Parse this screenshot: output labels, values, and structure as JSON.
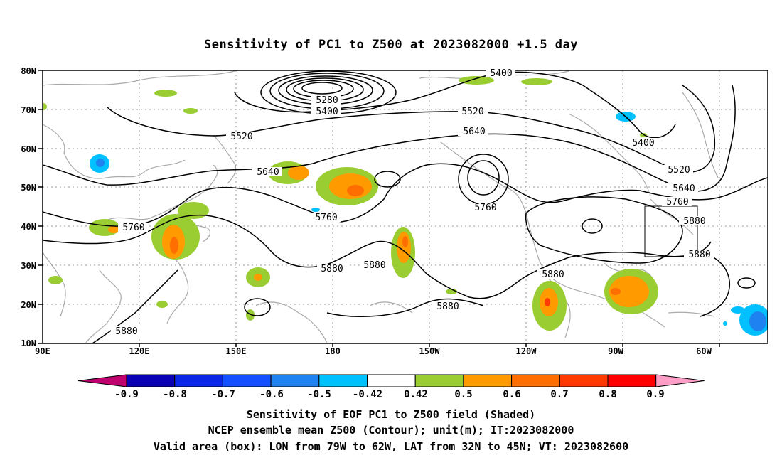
{
  "title": "Sensitivity of PC1 to Z500 at 2023082000 +1.5 day",
  "map": {
    "lat_labels": [
      "80N",
      "70N",
      "60N",
      "50N",
      "40N",
      "30N",
      "20N",
      "10N"
    ],
    "lon_labels": [
      "90E",
      "120E",
      "150E",
      "180",
      "150W",
      "120W",
      "90W",
      "60W"
    ],
    "contour_labels": {
      "c5400a": "5400",
      "c5280": "5280",
      "c5400b": "5400",
      "c5520a": "5520",
      "c5520b": "5520",
      "c5640a": "5640",
      "c5640b": "5640",
      "c5400c": "5400",
      "c5520c": "5520",
      "c5640c": "5640",
      "c5760a": "5760",
      "c5760b": "5760",
      "c5760c": "5760",
      "c5760d": "5760",
      "c5880a": "5880",
      "c5880b": "5880",
      "c5880c": "5880",
      "c5880d": "5880",
      "c5880e": "5880",
      "c5880f": "5880"
    },
    "valid_box": {
      "lon_min": "79W",
      "lon_max": "62W",
      "lat_min": "32N",
      "lat_max": "45N"
    },
    "colors": {
      "contour": "#000000",
      "coast": "#aaaaaa",
      "grid": "#999999"
    }
  },
  "colorbar": {
    "labels": [
      "-0.9",
      "-0.8",
      "-0.7",
      "-0.6",
      "-0.5",
      "-0.42",
      "0.42",
      "0.5",
      "0.6",
      "0.7",
      "0.8",
      "0.9"
    ],
    "colors": [
      "#c0006e",
      "#0a00b4",
      "#0a27e6",
      "#1450ff",
      "#1e82f0",
      "#00c0ff",
      "#ffffff",
      "#9acd32",
      "#ff9a00",
      "#ff6e00",
      "#ff3a00",
      "#ff0000",
      "#ff9fc8"
    ]
  },
  "footer": {
    "line1": "Sensitivity of EOF PC1 to Z500 field (Shaded)",
    "line2": "NCEP ensemble mean Z500 (Contour); unit(m); IT:2023082000",
    "line3": "Valid area (box): LON from 79W to 62W, LAT from 32N to 45N; VT: 2023082600"
  }
}
